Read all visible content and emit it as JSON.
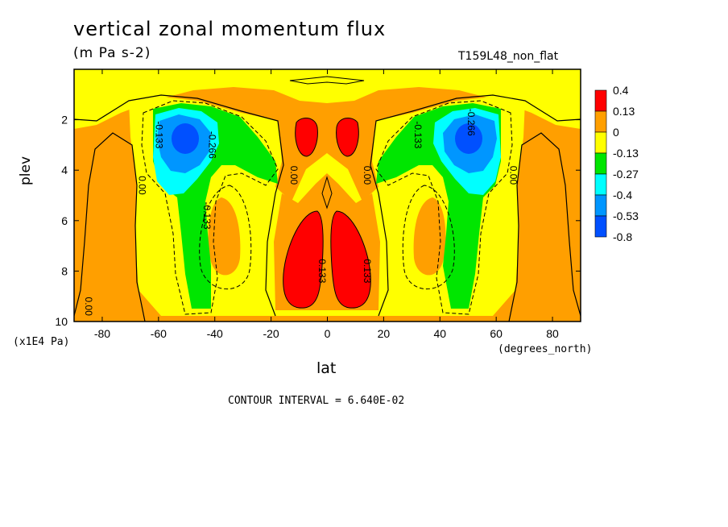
{
  "chart_data": {
    "type": "heatmap",
    "title": "vertical zonal momentum flux",
    "units": "(m Pa s-2)",
    "dataset": "T159L48_non_flat",
    "xlabel": "lat",
    "ylabel": "plev",
    "x_units": "(degrees_north)",
    "y_units": "(x1E4 Pa)",
    "xlim": [
      -90,
      90
    ],
    "ylim": [
      10,
      0
    ],
    "x_ticks": [
      "-80",
      "-60",
      "-40",
      "-20",
      "0",
      "20",
      "40",
      "60",
      "80"
    ],
    "y_ticks": [
      "2",
      "4",
      "6",
      "8",
      "10"
    ],
    "contour_interval_text": "CONTOUR INTERVAL = 6.640E-02",
    "legend": {
      "levels": [
        "0.4",
        "0.13",
        "0",
        "-0.13",
        "-0.27",
        "-0.4",
        "-0.53",
        "-0.8"
      ],
      "colors": [
        "#ff0000",
        "#ff9f00",
        "#ffff00",
        "#00e600",
        "#00ffff",
        "#0096ff",
        "#0050ff"
      ]
    },
    "contour_labels": [
      {
        "text": "0.00",
        "lat": -67,
        "p": 4.6
      },
      {
        "text": "0.00",
        "lat": -13,
        "p": 4.2
      },
      {
        "text": "0.00",
        "lat": 13,
        "p": 4.2
      },
      {
        "text": "0.00",
        "lat": 65,
        "p": 4.2
      },
      {
        "text": "0.00",
        "lat": -86,
        "p": 9.4
      },
      {
        "text": "-0.133",
        "lat": -61,
        "p": 2.6
      },
      {
        "text": "-0.266",
        "lat": -42,
        "p": 3.0
      },
      {
        "text": "-0.133",
        "lat": -44,
        "p": 5.8
      },
      {
        "text": "-0.133",
        "lat": 31,
        "p": 2.6
      },
      {
        "text": "-0.266",
        "lat": 50,
        "p": 2.1
      },
      {
        "text": "0.133",
        "lat": -3,
        "p": 8.0
      },
      {
        "text": "0.133",
        "lat": 13,
        "p": 8.0
      }
    ]
  }
}
